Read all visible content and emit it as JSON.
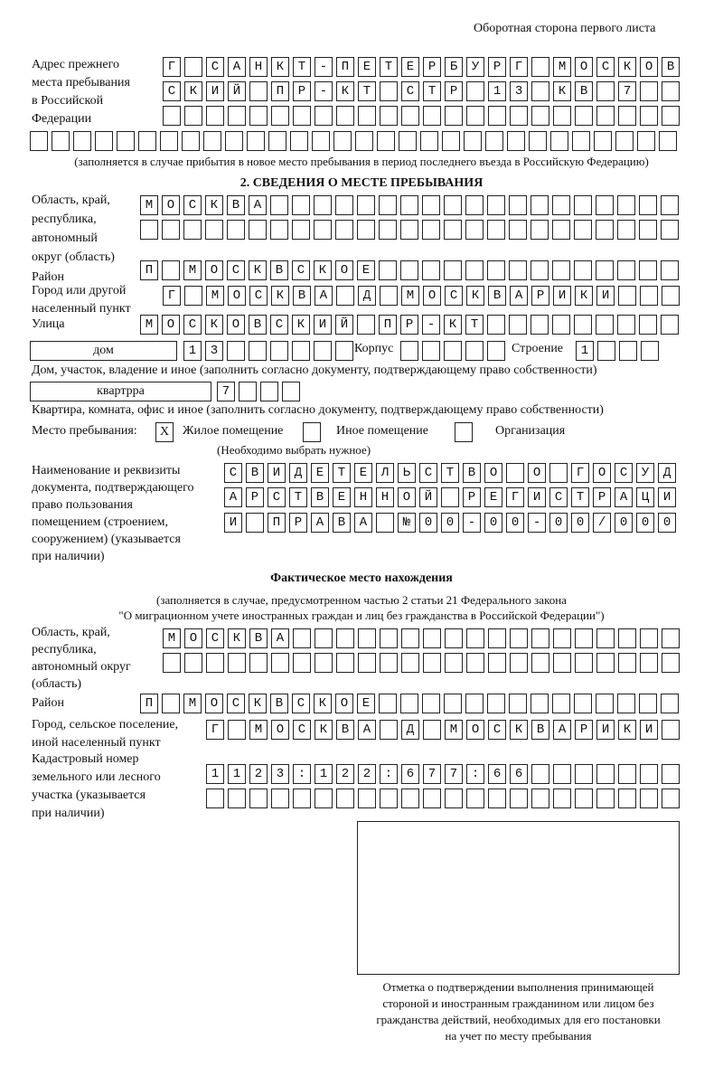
{
  "header": "Оборотная сторона первого листа",
  "previous_address": {
    "label": [
      "Адрес прежнего",
      "места пребывания",
      "в Российской",
      "Федерации"
    ],
    "rows": [
      "Г САНКТ-ПЕТЕРБУРГ МОСКОВ",
      "СКИЙ ПР-КТ СТР 13 КВ 7",
      "",
      ""
    ],
    "note": "(заполняется в случае прибытия в новое место пребывания в период последнего въезда в Российскую Федерацию)"
  },
  "section2": {
    "title": "2. СВЕДЕНИЯ О МЕСТЕ ПРЕБЫВАНИЯ",
    "region_label": [
      "Область, край,",
      "республика,",
      "автономный",
      "округ (область)"
    ],
    "region_rows": [
      "МОСКВА",
      ""
    ],
    "district_label": "Район",
    "district": "П МОСКВСКОЕ",
    "city_label": [
      "Город или другой",
      "населенный пункт"
    ],
    "city": "Г МОСКВА Д МОСКВАРИКИ",
    "street_label": "Улица",
    "street": "МОСКОВСКИЙ ПР-КТ",
    "house_type": "дом",
    "house": "13",
    "korpus_label": "Корпус",
    "korpus": "",
    "building_label": "Строение",
    "building": "1",
    "house_note": "Дом, участок, владение и иное (заполнить согласно документу, подтверждающему право собственности)",
    "apt_type": "квартрра",
    "apt": "7",
    "apt_note": "Квартира, комната, офис и иное (заполнить согласно документу, подтверждающему право собственности)",
    "place_label": "Место пребывания:",
    "place_options": [
      {
        "label": "Жилое помещение",
        "mark": "X"
      },
      {
        "label": "Иное помещение",
        "mark": ""
      },
      {
        "label": "Организация",
        "mark": ""
      }
    ],
    "place_note": "(Необходимо выбрать нужное)",
    "doc_label": [
      "Наименование и реквизиты",
      "документа, подтверждающего",
      "право пользования",
      "помещением (строением,",
      "сооружением) (указывается",
      "при наличии)"
    ],
    "doc_rows": [
      "СВИДЕТЕЛЬСТВО О ГОСУД",
      "АРСТВЕННОЙ РЕГИСТРАЦИ",
      "И ПРАВА №00-00-00/000"
    ]
  },
  "actual": {
    "title": "Фактическое место нахождения",
    "note": [
      "(заполняется в случае, предусмотренном частью 2 статьи 21 Федерального закона",
      "\"О миграционном учете иностранных граждан и лиц без гражданства в Российской Федерации\")"
    ],
    "region_label": [
      "Область, край,",
      "республика,",
      "автономный округ",
      "(область)"
    ],
    "region_rows": [
      "МОСКВА",
      ""
    ],
    "district_label": "Район",
    "district": "П МОСКВСКОЕ",
    "city_label": [
      "Город, сельское поселение,",
      "иной населенный пункт"
    ],
    "city": "Г МОСКВА Д МОСКВАРИКИ",
    "cadastre_label": [
      "Кадастровый номер",
      "земельного или лесного",
      "участка (указывается",
      "при наличии)"
    ],
    "cadastre_rows": [
      "1123:122:677:66",
      ""
    ]
  },
  "stamp_caption": [
    "Отметка о подтверждении выполнения принимающей",
    "стороной и иностранным гражданином или лицом без",
    "гражданства действий, необходимых для его постановки",
    "на учет по месту пребывания"
  ]
}
